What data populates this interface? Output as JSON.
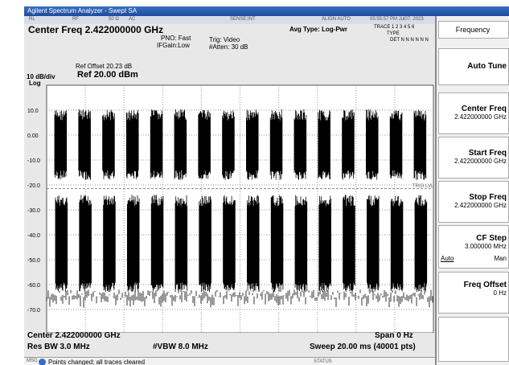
{
  "window": {
    "title": "Agilent Spectrum Analyzer - Swept SA"
  },
  "status": [
    "RL",
    "RF",
    "50 Ω",
    "AC",
    "SENSE:INT",
    "ALIGN AUTO",
    "05:55:57 PM Jul07, 2023"
  ],
  "header": {
    "center_freq": "Center Freq 2.422000000 GHz",
    "pno": "PNO: Fast",
    "ifgain": "IFGain:Low",
    "trig": "Trig: Video",
    "atten": "#Atten: 30 dB",
    "avg_type": "Avg Type: Log-Pwr",
    "trace": "TRACE 1 2 3 4 5 6",
    "type": "TYPE",
    "det": "DET N N N N N N"
  },
  "graph": {
    "ref_offset": "Ref Offset 20.23 dB",
    "ref_level": "Ref 20.00 dBm",
    "scale": "10 dB/div",
    "scale_type": "Log",
    "y_labels": [
      "10.0",
      "0.00",
      "-10.0",
      "-20.0",
      "-30.0",
      "-40.0",
      "-50.0",
      "-60.0",
      "-70.0"
    ],
    "trig_marker": "TRIG LVL"
  },
  "footer": {
    "center": "Center 2.422000000 GHz",
    "span": "Span 0 Hz",
    "res_bw": "Res BW 3.0 MHz",
    "vbw": "#VBW 8.0 MHz",
    "sweep": "Sweep  20.00 ms (40001 pts)"
  },
  "message": {
    "label": "MSG",
    "text": "Points changed; all traces cleared",
    "status": "STATUS"
  },
  "softkeys": {
    "menu": "Frequency",
    "auto_tune": "Auto Tune",
    "center_freq": {
      "label": "Center Freq",
      "value": "2.422000000 GHz"
    },
    "start_freq": {
      "label": "Start Freq",
      "value": "2.422000000 GHz"
    },
    "stop_freq": {
      "label": "Stop Freq",
      "value": "2.422000000 GHz"
    },
    "cf_step": {
      "label": "CF Step",
      "value": "3.000000 MHz",
      "auto": "Auto",
      "man": "Man"
    },
    "freq_offset": {
      "label": "Freq Offset",
      "value": "0 Hz"
    }
  }
}
